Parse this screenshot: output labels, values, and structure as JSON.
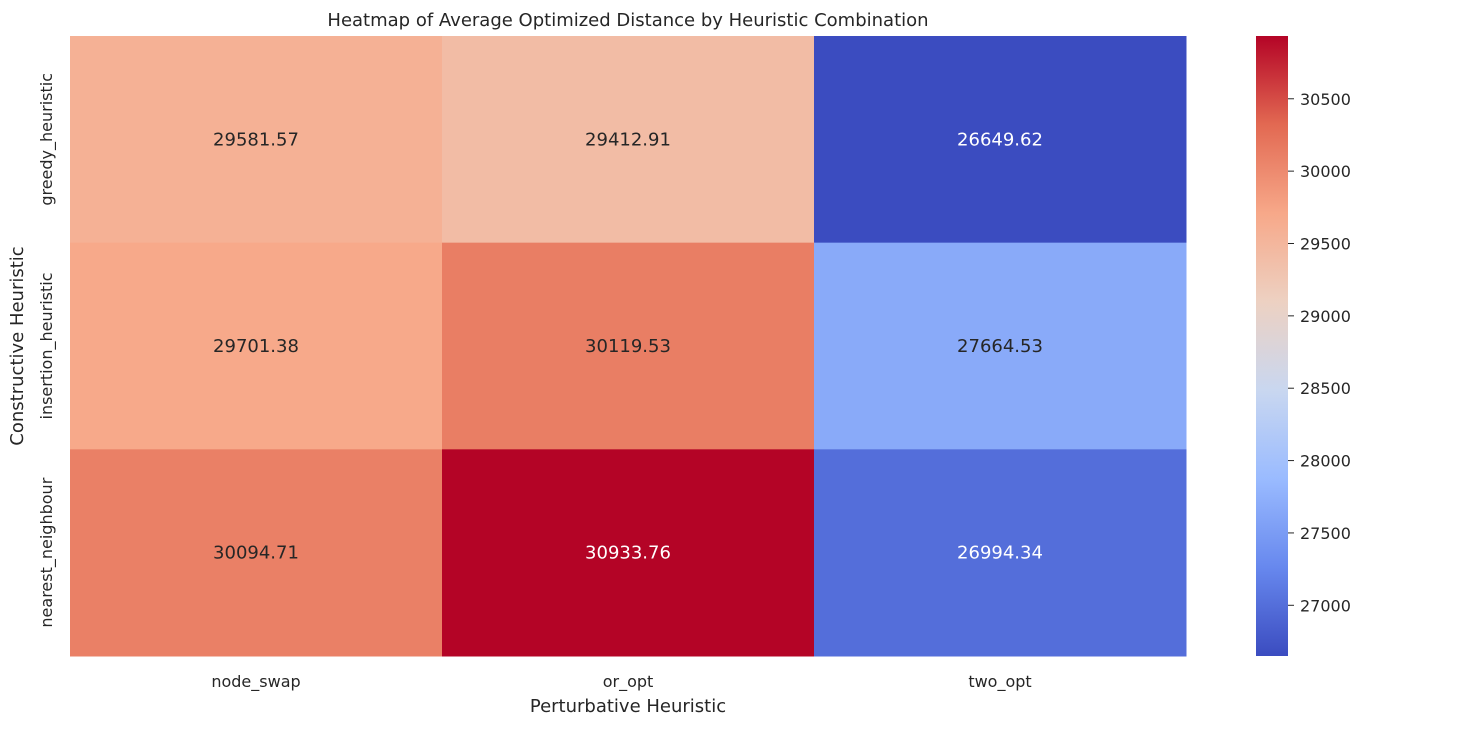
{
  "chart_data": {
    "type": "heatmap",
    "title": "Heatmap of Average Optimized Distance by Heuristic Combination",
    "xlabel": "Perturbative Heuristic",
    "ylabel": "Constructive Heuristic",
    "x_categories": [
      "node_swap",
      "or_opt",
      "two_opt"
    ],
    "y_categories": [
      "greedy_heuristic",
      "insertion_heuristic",
      "nearest_neighbour"
    ],
    "values": [
      [
        29581.57,
        29412.91,
        26649.62
      ],
      [
        29701.38,
        30119.53,
        27664.53
      ],
      [
        30094.71,
        30933.76,
        26994.34
      ]
    ],
    "value_labels": [
      [
        "29581.57",
        "29412.91",
        "26649.62"
      ],
      [
        "29701.38",
        "30119.53",
        "27664.53"
      ],
      [
        "30094.71",
        "30933.76",
        "26994.34"
      ]
    ],
    "colormap": "coolwarm",
    "colorbar": {
      "vmin": 26649.62,
      "vmax": 30933.76,
      "ticks": [
        27000,
        27500,
        28000,
        28500,
        29000,
        29500,
        30000,
        30500
      ],
      "tick_labels": [
        "27000",
        "27500",
        "28000",
        "28500",
        "29000",
        "29500",
        "30000",
        "30500"
      ]
    },
    "colormap_stops": [
      "#3b4cc0",
      "#6788ee",
      "#9abbff",
      "#c9d7f0",
      "#edd1c2",
      "#f7a889",
      "#e26952",
      "#b40426"
    ]
  }
}
